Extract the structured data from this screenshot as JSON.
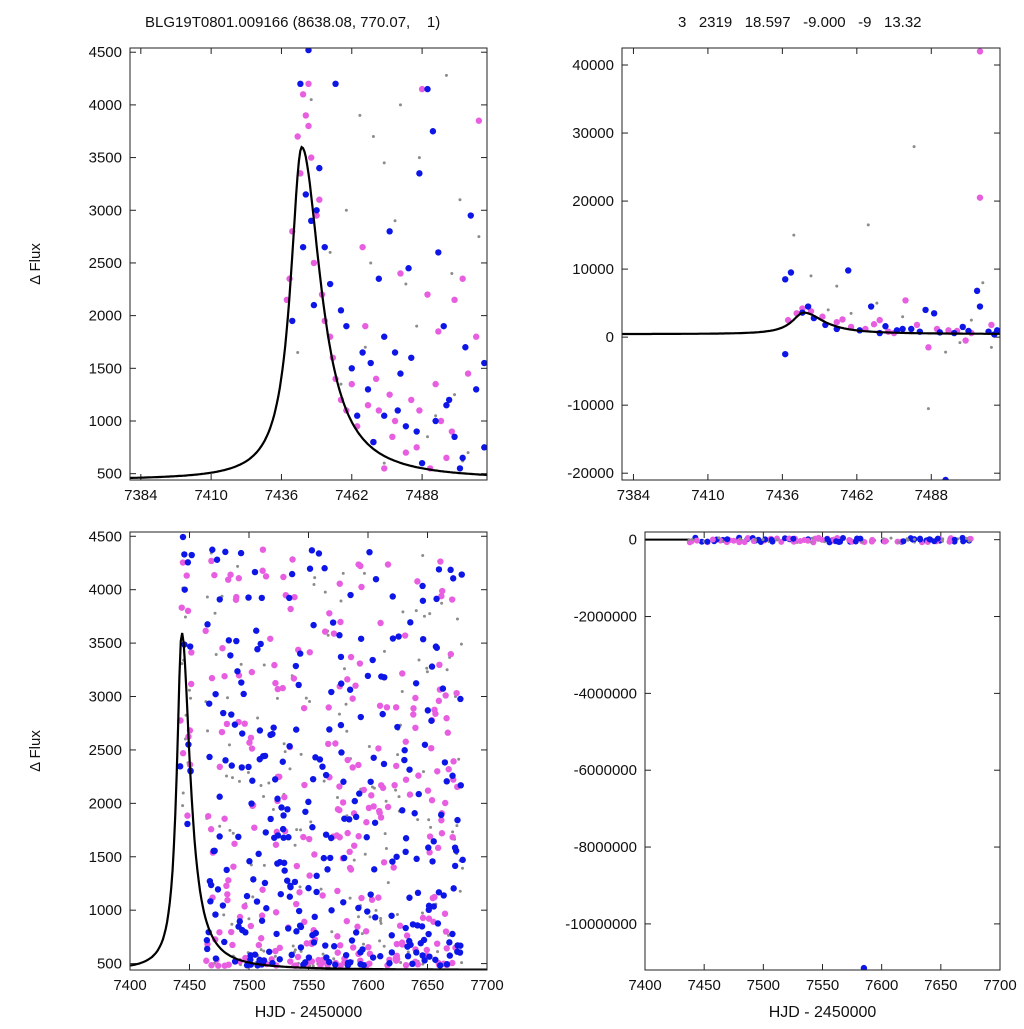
{
  "header": {
    "left_title": "BLG19T0801.009166 (8638.08, 770.07,    1)",
    "right_title": "3   2319   18.597   -9.000   -9   13.32"
  },
  "colors": {
    "model": "#000000",
    "series_gray": "#8c8c8c",
    "series_magenta": "#e85ee0",
    "series_blue": "#0d16e6",
    "frame": "#222222"
  },
  "chart_data": [
    {
      "type": "scatter",
      "panel": "top-left",
      "xlabel": "",
      "ylabel": "Δ Flux",
      "xlim": [
        7380,
        7512
      ],
      "ylim": [
        440,
        4540
      ],
      "xticks": [
        7384,
        7410,
        7436,
        7462,
        7488
      ],
      "yticks": [
        500,
        1000,
        1500,
        2000,
        2500,
        3000,
        3500,
        4000,
        4500
      ],
      "model_curve": {
        "t0": 7443.5,
        "peak": 3600,
        "base": 440,
        "width_rise": 5.5,
        "width_fall": 8.5
      },
      "series": [
        {
          "color_key": "series_gray",
          "points": [
            [
              7442,
              1650
            ],
            [
              7447,
              4050
            ],
            [
              7454,
              2600
            ],
            [
              7458,
              1350
            ],
            [
              7465,
              3900
            ],
            [
              7469,
              2500
            ],
            [
              7474,
              3450
            ],
            [
              7480,
              4000
            ],
            [
              7482,
              2300
            ],
            [
              7487,
              3500
            ],
            [
              7493,
              1050
            ],
            [
              7497,
              4280
            ],
            [
              7499,
              2400
            ],
            [
              7502,
              3100
            ],
            [
              7505,
              700
            ],
            [
              7509,
              2750
            ],
            [
              7486,
              1900
            ],
            [
              7474,
              600
            ],
            [
              7467,
              1700
            ],
            [
              7500,
              1250
            ],
            [
              7503,
              620
            ],
            [
              7490,
              850
            ],
            [
              7460,
              3000
            ],
            [
              7470,
              3700
            ],
            [
              7478,
              2900
            ]
          ]
        },
        {
          "color_key": "series_magenta",
          "points": [
            [
              7438,
              2150
            ],
            [
              7439,
              2350
            ],
            [
              7440,
              2800
            ],
            [
              7442,
              3700
            ],
            [
              7443,
              3350
            ],
            [
              7444,
              4100
            ],
            [
              7445,
              3900
            ],
            [
              7446,
              3800
            ],
            [
              7446,
              4200
            ],
            [
              7447,
              3500
            ],
            [
              7448,
              2500
            ],
            [
              7449,
              2950
            ],
            [
              7450,
              3100
            ],
            [
              7451,
              2200
            ],
            [
              7452,
              1950
            ],
            [
              7454,
              1800
            ],
            [
              7455,
              1600
            ],
            [
              7456,
              1400
            ],
            [
              7458,
              1200
            ],
            [
              7460,
              1100
            ],
            [
              7462,
              1350
            ],
            [
              7464,
              950
            ],
            [
              7466,
              2650
            ],
            [
              7468,
              1150
            ],
            [
              7470,
              800
            ],
            [
              7472,
              1100
            ],
            [
              7474,
              550
            ],
            [
              7476,
              1250
            ],
            [
              7478,
              1000
            ],
            [
              7480,
              2400
            ],
            [
              7482,
              700
            ],
            [
              7484,
              1200
            ],
            [
              7486,
              750
            ],
            [
              7488,
              4150
            ],
            [
              7490,
              2200
            ],
            [
              7491,
              550
            ],
            [
              7493,
              1350
            ],
            [
              7495,
              1000
            ],
            [
              7497,
              650
            ],
            [
              7500,
              2150
            ],
            [
              7503,
              2350
            ],
            [
              7505,
              1450
            ],
            [
              7509,
              3850
            ],
            [
              7508,
              1800
            ],
            [
              7467,
              1900
            ],
            [
              7471,
              1400
            ],
            [
              7477,
              850
            ],
            [
              7487,
              1100
            ],
            [
              7494,
              1850
            ],
            [
              7499,
              900
            ]
          ]
        },
        {
          "color_key": "series_blue",
          "points": [
            [
              7440,
              1950
            ],
            [
              7443,
              4200
            ],
            [
              7444,
              2650
            ],
            [
              7445,
              3150
            ],
            [
              7446,
              4520
            ],
            [
              7447,
              2900
            ],
            [
              7448,
              2100
            ],
            [
              7449,
              3000
            ],
            [
              7450,
              3400
            ],
            [
              7452,
              2650
            ],
            [
              7454,
              2300
            ],
            [
              7456,
              4200
            ],
            [
              7458,
              2050
            ],
            [
              7460,
              1900
            ],
            [
              7462,
              1500
            ],
            [
              7464,
              1050
            ],
            [
              7466,
              1650
            ],
            [
              7468,
              1300
            ],
            [
              7470,
              800
            ],
            [
              7472,
              2350
            ],
            [
              7474,
              1050
            ],
            [
              7476,
              2800
            ],
            [
              7478,
              1650
            ],
            [
              7480,
              1450
            ],
            [
              7482,
              950
            ],
            [
              7484,
              1600
            ],
            [
              7486,
              900
            ],
            [
              7488,
              600
            ],
            [
              7490,
              4150
            ],
            [
              7492,
              3750
            ],
            [
              7494,
              2600
            ],
            [
              7496,
              1900
            ],
            [
              7498,
              1200
            ],
            [
              7500,
              850
            ],
            [
              7502,
              550
            ],
            [
              7504,
              1700
            ],
            [
              7506,
              2950
            ],
            [
              7508,
              1300
            ],
            [
              7511,
              1550
            ],
            [
              7511,
              750
            ],
            [
              7474,
              1800
            ],
            [
              7479,
              1100
            ],
            [
              7483,
              2450
            ],
            [
              7497,
              1150
            ],
            [
              7487,
              3350
            ],
            [
              7503,
              650
            ],
            [
              7469,
              1550
            ],
            [
              7493,
              1000
            ]
          ]
        }
      ]
    },
    {
      "type": "scatter",
      "panel": "top-right",
      "xlabel": "",
      "ylabel": "",
      "xlim": [
        7380,
        7512
      ],
      "ylim": [
        -21000,
        42500
      ],
      "xticks": [
        7384,
        7410,
        7436,
        7462,
        7488
      ],
      "yticks": [
        -20000,
        -10000,
        0,
        10000,
        20000,
        30000,
        40000
      ],
      "model_curve": {
        "t0": 7443.5,
        "peak": 3600,
        "base": 440,
        "width_rise": 5.5,
        "width_fall": 8.5
      },
      "series": [
        {
          "color_key": "series_gray",
          "points": [
            [
              7440,
              15000
            ],
            [
              7446,
              9000
            ],
            [
              7455,
              7500
            ],
            [
              7466,
              16500
            ],
            [
              7469,
              5000
            ],
            [
              7478,
              3000
            ],
            [
              7482,
              28000
            ],
            [
              7487,
              -10500
            ],
            [
              7493,
              -2200
            ],
            [
              7498,
              -800
            ],
            [
              7502,
              2500
            ],
            [
              7506,
              8000
            ],
            [
              7509,
              -1500
            ],
            [
              7452,
              4000
            ],
            [
              7460,
              3500
            ],
            [
              7475,
              500
            ]
          ]
        },
        {
          "color_key": "series_magenta",
          "points": [
            [
              7438,
              2500
            ],
            [
              7441,
              3500
            ],
            [
              7443,
              4200
            ],
            [
              7446,
              3800
            ],
            [
              7450,
              3000
            ],
            [
              7455,
              2200
            ],
            [
              7460,
              1500
            ],
            [
              7465,
              1200
            ],
            [
              7470,
              2500
            ],
            [
              7475,
              600
            ],
            [
              7479,
              5400
            ],
            [
              7483,
              1800
            ],
            [
              7487,
              -1500
            ],
            [
              7490,
              1200
            ],
            [
              7494,
              1000
            ],
            [
              7500,
              -500
            ],
            [
              7505,
              20500
            ],
            [
              7505,
              42000
            ],
            [
              7509,
              1800
            ],
            [
              7457,
              2600
            ],
            [
              7468,
              1900
            ],
            [
              7473,
              800
            ],
            [
              7497,
              900
            ],
            [
              7502,
              600
            ]
          ]
        },
        {
          "color_key": "series_blue",
          "points": [
            [
              7437,
              8500
            ],
            [
              7437,
              -2500
            ],
            [
              7439,
              9500
            ],
            [
              7443,
              3600
            ],
            [
              7445,
              4500
            ],
            [
              7447,
              2800
            ],
            [
              7451,
              1800
            ],
            [
              7455,
              1200
            ],
            [
              7459,
              9800
            ],
            [
              7463,
              1000
            ],
            [
              7467,
              4500
            ],
            [
              7472,
              1600
            ],
            [
              7476,
              1000
            ],
            [
              7481,
              1200
            ],
            [
              7486,
              4000
            ],
            [
              7489,
              3500
            ],
            [
              7493,
              -21000
            ],
            [
              7496,
              600
            ],
            [
              7499,
              1500
            ],
            [
              7504,
              6800
            ],
            [
              7505,
              4500
            ],
            [
              7508,
              800
            ],
            [
              7511,
              1000
            ],
            [
              7470,
              600
            ],
            [
              7478,
              1200
            ],
            [
              7484,
              800
            ],
            [
              7491,
              700
            ],
            [
              7501,
              900
            ],
            [
              7510,
              400
            ]
          ]
        }
      ]
    },
    {
      "type": "scatter",
      "panel": "bottom-left",
      "xlabel": "HJD - 2450000",
      "ylabel": "Δ Flux",
      "xlim": [
        7400,
        7700
      ],
      "ylim": [
        440,
        4540
      ],
      "xticks": [
        7400,
        7450,
        7500,
        7550,
        7600,
        7650,
        7700
      ],
      "yticks": [
        500,
        1000,
        1500,
        2000,
        2500,
        3000,
        3500,
        4000,
        4500
      ],
      "model_curve": {
        "t0": 7443.5,
        "peak": 3600,
        "base": 440,
        "width_rise": 5.5,
        "width_fall": 8.5
      },
      "data_range": [
        7436,
        7680
      ],
      "series": [
        {
          "color_key": "series_gray",
          "seed": 17,
          "count": 190
        },
        {
          "color_key": "series_magenta",
          "seed": 29,
          "count": 280
        },
        {
          "color_key": "series_blue",
          "seed": 41,
          "count": 300
        }
      ]
    },
    {
      "type": "scatter",
      "panel": "bottom-right",
      "xlabel": "HJD - 2450000",
      "ylabel": "",
      "xlim": [
        7400,
        7700
      ],
      "ylim": [
        -11200000,
        200000
      ],
      "xticks": [
        7400,
        7450,
        7500,
        7550,
        7600,
        7650,
        7700
      ],
      "yticks": [
        -10000000,
        -8000000,
        -6000000,
        -4000000,
        -2000000,
        0
      ],
      "outlier": [
        7585,
        -11150000
      ],
      "band": [
        7436,
        7680
      ]
    }
  ]
}
